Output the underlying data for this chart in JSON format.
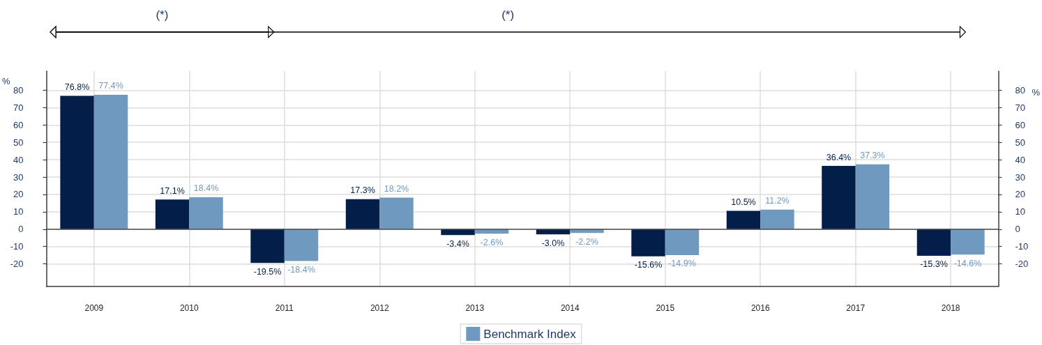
{
  "chart_data": {
    "type": "bar",
    "categories": [
      "2009",
      "2010",
      "2011",
      "2012",
      "2013",
      "2014",
      "2015",
      "2016",
      "2017",
      "2018"
    ],
    "series": [
      {
        "color": "#031e48",
        "values": [
          76.8,
          17.1,
          -19.5,
          17.3,
          -3.4,
          -3.0,
          -15.6,
          10.5,
          36.4,
          -15.3
        ],
        "value_labels": [
          "76.8%",
          "17.1%",
          "-19.5%",
          "17.3%",
          "-3.4%",
          "-3.0%",
          "-15.6%",
          "10.5%",
          "36.4%",
          "-15.3%"
        ]
      },
      {
        "name": "Benchmark Index",
        "color": "#7099bf",
        "values": [
          77.4,
          18.4,
          -18.4,
          18.2,
          -2.6,
          -2.2,
          -14.9,
          11.2,
          37.3,
          -14.6
        ],
        "value_labels": [
          "77.4%",
          "18.4%",
          "-18.4%",
          "18.2%",
          "-2.6%",
          "-2.2%",
          "-14.9%",
          "11.2%",
          "37.3%",
          "-14.6%"
        ]
      }
    ],
    "ylabel": "%",
    "y2label": "%",
    "ylim": [
      -33,
      91
    ],
    "yticks": [
      -20,
      -10,
      0,
      10,
      20,
      30,
      40,
      50,
      60,
      70,
      80
    ],
    "y2lim": [
      -33,
      91
    ],
    "y2ticks": [
      -20,
      -10,
      0,
      10,
      20,
      30,
      40,
      50,
      60,
      70,
      80
    ],
    "ref_lines": [
      {
        "axis": "y",
        "value": 0,
        "color": "#4a4a4a"
      }
    ],
    "grid": true,
    "legend": "bottom",
    "annotations": [
      "(*)",
      "(*)"
    ]
  }
}
